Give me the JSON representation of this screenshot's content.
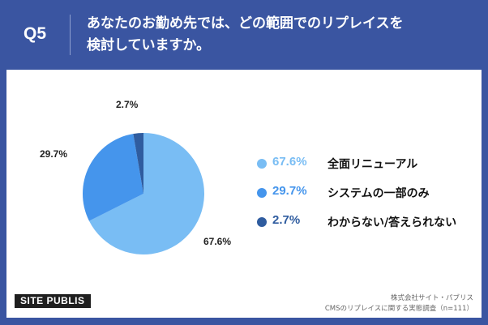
{
  "header": {
    "question_number": "Q5",
    "question_line1": "あなたのお勤め先では、どの範囲でのリプレイスを",
    "question_line2": "検討していますか。"
  },
  "chart_data": {
    "type": "pie",
    "title": "",
    "start_angle_deg": 0,
    "direction": "clockwise",
    "series": [
      {
        "name": "全面リニューアル",
        "value": 67.6,
        "label": "67.6%",
        "color": "#79bdf4"
      },
      {
        "name": "システムの一部のみ",
        "value": 29.7,
        "label": "29.7%",
        "color": "#4595ec"
      },
      {
        "name": "わからない/答えられない",
        "value": 2.7,
        "label": "2.7%",
        "color": "#2f5c9f"
      }
    ],
    "legend_position": "right"
  },
  "footer": {
    "brand": "SITE PUBLIS",
    "source_line1": "株式会社サイト・パブリス",
    "source_line2": "CMSのリプレイスに関する実態調査（n=111）"
  }
}
